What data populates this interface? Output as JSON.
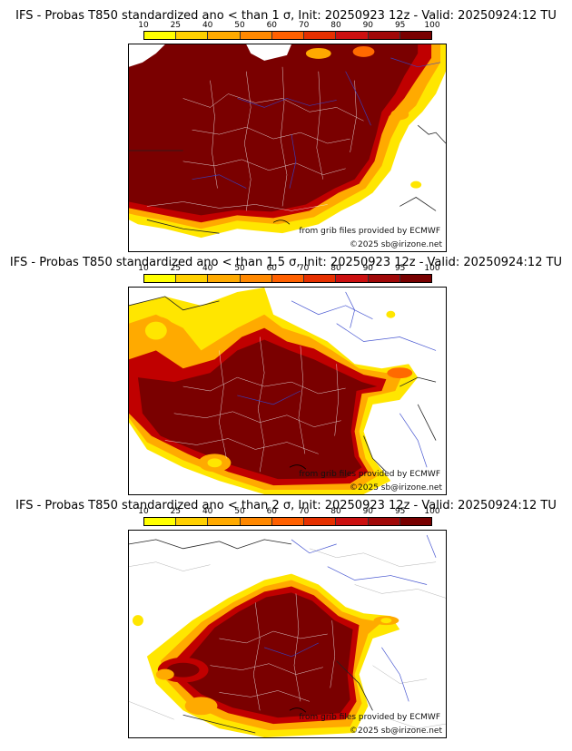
{
  "legend": {
    "labels": [
      "10",
      "25",
      "40",
      "50",
      "60",
      "70",
      "80",
      "90",
      "95",
      "100"
    ],
    "colors": [
      "#ffff00",
      "#ffd000",
      "#ffaa00",
      "#ff8800",
      "#ff6000",
      "#e63000",
      "#cc1010",
      "#a00808",
      "#780000"
    ]
  },
  "panels": [
    {
      "title": "IFS - Probas T850  standardized ano < than 1 σ, Init: 20250923 12z - Valid: 20250924:12 TU",
      "credit_source": "from grib files provided by ECMWF",
      "credit_copyright": "©2025 sb@irizone.net"
    },
    {
      "title": "IFS - Probas T850  standardized ano < than 1.5 σ, Init: 20250923 12z - Valid: 20250924:12 TU",
      "credit_source": "from grib files provided by ECMWF",
      "credit_copyright": "©2025 sb@irizone.net"
    },
    {
      "title": "IFS - Probas T850  standardized ano < than 2 σ, Init: 20250923 12z - Valid: 20250924:12 TU",
      "credit_source": "from grib files provided by ECMWF",
      "credit_copyright": "©2025 sb@irizone.net"
    }
  ],
  "colors": {
    "dark": "#7a0000",
    "red": "#c00000",
    "orange": "#ff6a00",
    "amber": "#ffaa00",
    "yellow": "#ffe600",
    "border_white": "#f0f0f0",
    "coast": "#222222",
    "river": "#3344cc"
  }
}
